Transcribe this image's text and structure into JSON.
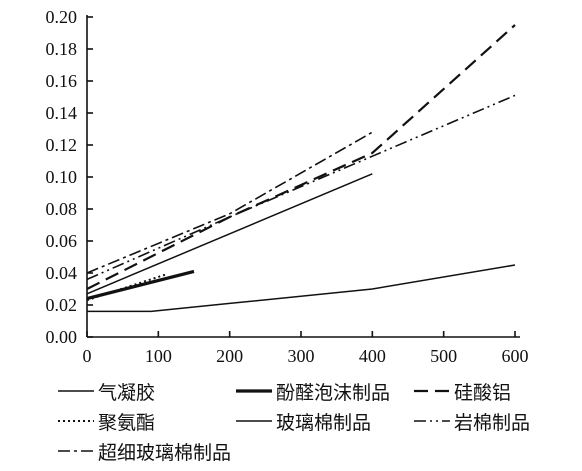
{
  "chart_data": {
    "type": "line",
    "title": "",
    "xlabel": "",
    "ylabel": "",
    "xlim": [
      0,
      600
    ],
    "ylim": [
      0,
      0.2
    ],
    "x_ticks": [
      "0",
      "100",
      "200",
      "300",
      "400",
      "500",
      "600"
    ],
    "y_ticks": [
      "0.00",
      "0.02",
      "0.04",
      "0.06",
      "0.08",
      "0.10",
      "0.12",
      "0.14",
      "0.16",
      "0.18",
      "0.20"
    ],
    "grid": false,
    "legend_position": "bottom",
    "series": [
      {
        "name": "气凝胶",
        "dash": "solid-thin",
        "color": "#111111",
        "points": [
          [
            0,
            0.016
          ],
          [
            90,
            0.016
          ],
          [
            200,
            0.021
          ],
          [
            400,
            0.03
          ],
          [
            600,
            0.045
          ]
        ]
      },
      {
        "name": "酚醛泡沫制品",
        "dash": "solid-thick",
        "color": "#111111",
        "points": [
          [
            0,
            0.024
          ],
          [
            150,
            0.041
          ]
        ]
      },
      {
        "name": "硅酸铝",
        "dash": "long-dash",
        "color": "#111111",
        "points": [
          [
            0,
            0.03
          ],
          [
            200,
            0.075
          ],
          [
            400,
            0.115
          ],
          [
            600,
            0.195
          ]
        ]
      },
      {
        "name": "聚氨酯",
        "dash": "dotted",
        "color": "#111111",
        "points": [
          [
            0,
            0.023
          ],
          [
            110,
            0.039
          ]
        ]
      },
      {
        "name": "玻璃棉制品",
        "dash": "solid-thin",
        "color": "#111111",
        "points": [
          [
            0,
            0.027
          ],
          [
            400,
            0.102
          ]
        ]
      },
      {
        "name": "岩棉制品",
        "dash": "dash-dot-dot",
        "color": "#111111",
        "points": [
          [
            0,
            0.036
          ],
          [
            200,
            0.075
          ],
          [
            400,
            0.113
          ],
          [
            600,
            0.151
          ]
        ]
      },
      {
        "name": "超细玻璃棉制品",
        "dash": "dash-dot",
        "color": "#111111",
        "points": [
          [
            0,
            0.04
          ],
          [
            200,
            0.077
          ],
          [
            400,
            0.128
          ]
        ]
      }
    ]
  }
}
